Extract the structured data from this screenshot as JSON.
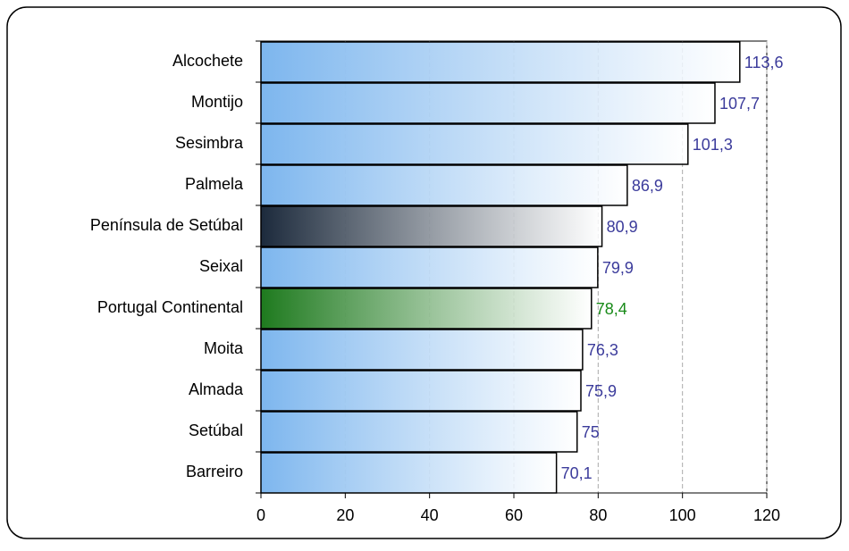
{
  "chart_data": {
    "type": "barh",
    "categories": [
      "Alcochete",
      "Montijo",
      "Sesimbra",
      "Palmela",
      "Península de Setúbal",
      "Seixal",
      "Portugal Continental",
      "Moita",
      "Almada",
      "Setúbal",
      "Barreiro"
    ],
    "values": [
      113.6,
      107.7,
      101.3,
      86.9,
      80.9,
      79.9,
      78.4,
      76.3,
      75.9,
      75,
      70.1
    ],
    "value_labels": [
      "113,6",
      "107,7",
      "101,3",
      "86,9",
      "80,9",
      "79,9",
      "78,4",
      "76,3",
      "75,9",
      "75",
      "70,1"
    ],
    "colors": [
      "#7db6ee",
      "#7db6ee",
      "#7db6ee",
      "#7db6ee",
      "#1c2a3c",
      "#7db6ee",
      "#1e7a1e",
      "#7db6ee",
      "#7db6ee",
      "#7db6ee",
      "#7db6ee"
    ],
    "label_colors": [
      "#3b3b9b",
      "#3b3b9b",
      "#3b3b9b",
      "#3b3b9b",
      "#3b3b9b",
      "#3b3b9b",
      "#188a18",
      "#3b3b9b",
      "#3b3b9b",
      "#3b3b9b",
      "#3b3b9b"
    ],
    "xlim": [
      0,
      120
    ],
    "xticks": [
      0,
      20,
      40,
      60,
      80,
      100,
      120
    ],
    "grid": true
  }
}
